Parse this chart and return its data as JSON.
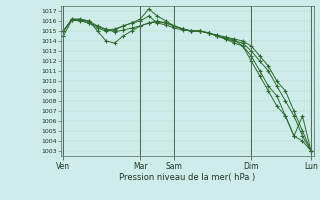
{
  "xlabel": "Pression niveau de la mer( hPa )",
  "bg_color": "#ceecea",
  "line_color": "#2d6a2d",
  "ylim": [
    1002.5,
    1017.5
  ],
  "yticks": [
    1003,
    1004,
    1005,
    1006,
    1007,
    1008,
    1009,
    1010,
    1011,
    1012,
    1013,
    1014,
    1015,
    1016,
    1017
  ],
  "day_labels": [
    "Ven",
    "Mar",
    "Sam",
    "Dim",
    "Lun"
  ],
  "day_positions": [
    0,
    9,
    13,
    22,
    29
  ],
  "n_points": 30,
  "series": [
    [
      1015.0,
      1016.1,
      1016.0,
      1015.8,
      1015.5,
      1015.2,
      1014.9,
      1015.1,
      1015.3,
      1015.5,
      1015.8,
      1015.9,
      1015.8,
      1015.5,
      1015.2,
      1015.0,
      1015.0,
      1014.8,
      1014.6,
      1014.4,
      1014.2,
      1014.0,
      1013.5,
      1012.5,
      1011.5,
      1010.0,
      1009.0,
      1007.0,
      1005.0,
      1003.0
    ],
    [
      1014.5,
      1016.1,
      1016.1,
      1016.0,
      1015.0,
      1014.0,
      1013.8,
      1014.5,
      1015.0,
      1015.5,
      1015.8,
      1016.0,
      1015.8,
      1015.5,
      1015.2,
      1015.0,
      1015.0,
      1014.8,
      1014.5,
      1014.2,
      1014.0,
      1013.8,
      1013.0,
      1012.0,
      1011.0,
      1009.5,
      1008.0,
      1006.5,
      1004.5,
      1003.0
    ],
    [
      1015.0,
      1016.2,
      1016.1,
      1015.8,
      1015.3,
      1015.0,
      1015.1,
      1015.5,
      1015.8,
      1016.2,
      1017.2,
      1016.5,
      1016.0,
      1015.5,
      1015.2,
      1015.0,
      1015.0,
      1014.8,
      1014.5,
      1014.3,
      1014.1,
      1013.5,
      1012.5,
      1011.0,
      1009.5,
      1008.5,
      1006.5,
      1004.5,
      1004.0,
      1003.0
    ],
    [
      1015.0,
      1016.2,
      1016.2,
      1016.0,
      1015.5,
      1015.1,
      1015.2,
      1015.5,
      1015.8,
      1016.0,
      1016.5,
      1015.8,
      1015.6,
      1015.3,
      1015.1,
      1015.0,
      1015.0,
      1014.8,
      1014.5,
      1014.2,
      1013.8,
      1013.5,
      1012.0,
      1010.5,
      1009.0,
      1007.5,
      1006.5,
      1004.5,
      1006.5,
      1003.0
    ]
  ]
}
